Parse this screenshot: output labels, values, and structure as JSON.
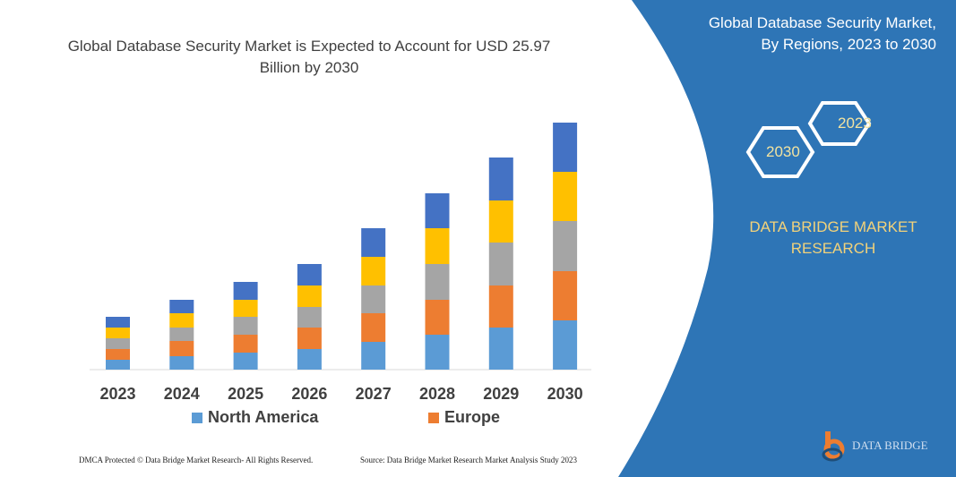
{
  "header": {
    "title": "Global Database Security Market is Expected to Account for USD 25.97 Billion by 2030"
  },
  "side": {
    "title_line1": "Global Database Security Market,",
    "title_line2": "By Regions, 2023 to 2030",
    "hex1": "2023",
    "hex2": "2030",
    "brand_line1": "DATA BRIDGE MARKET",
    "brand_line2": "RESEARCH",
    "panel_color": "#2e75b6"
  },
  "footer": {
    "left": "DMCA Protected © Data Bridge Market Research-  All Rights Reserved.",
    "right": "Source: Data Bridge Market Research  Market Analysis Study 2023",
    "logo_text": "DATA BRIDGE"
  },
  "chart_data": {
    "type": "bar",
    "stacked": true,
    "categories": [
      "2023",
      "2024",
      "2025",
      "2026",
      "2027",
      "2028",
      "2029",
      "2030"
    ],
    "series": [
      {
        "name": "North America",
        "color": "#5b9bd5",
        "values": [
          11,
          15,
          19,
          23,
          31,
          39,
          47,
          55
        ]
      },
      {
        "name": "Europe",
        "color": "#ed7d31",
        "values": [
          12,
          17,
          20,
          24,
          32,
          39,
          47,
          55
        ]
      },
      {
        "color": "#a5a5a5",
        "values": [
          12,
          15,
          20,
          23,
          31,
          40,
          48,
          56
        ]
      },
      {
        "color": "#ffc000",
        "values": [
          12,
          16,
          19,
          24,
          32,
          40,
          47,
          55
        ]
      },
      {
        "color": "#4472c4",
        "values": [
          12,
          15,
          20,
          24,
          32,
          39,
          48,
          55
        ]
      }
    ],
    "legend": "bottom",
    "grid": false,
    "y_axis_labels": false
  }
}
